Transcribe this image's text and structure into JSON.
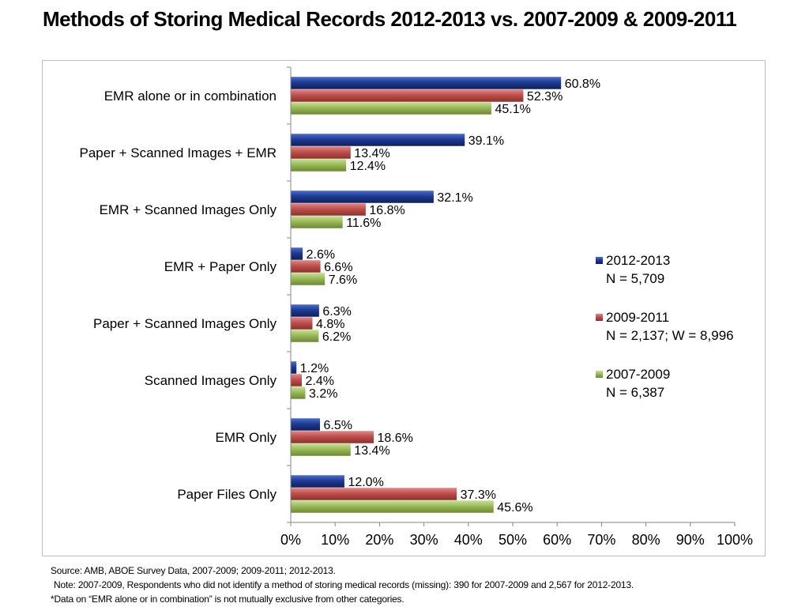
{
  "title": "Methods of Storing Medical Records 2012-2013 vs. 2007-2009 & 2009-2011",
  "colors": {
    "s2012_2013": "#1f3a93",
    "s2009_2011": "#c0504d",
    "s2007_2009": "#9bbb59",
    "axis": "#868686"
  },
  "chart_data": {
    "type": "bar",
    "orientation": "horizontal",
    "categories": [
      "EMR alone or in combination",
      "Paper + Scanned Images + EMR",
      "EMR + Scanned Images Only",
      "EMR + Paper Only",
      "Paper + Scanned Images Only",
      "Scanned Images Only",
      "EMR Only",
      "Paper Files Only"
    ],
    "series": [
      {
        "name": "2012-2013",
        "sub": "N = 5,709",
        "values": [
          60.8,
          39.1,
          32.1,
          2.6,
          6.3,
          1.2,
          6.5,
          12.0
        ],
        "labels": [
          "60.8%",
          "39.1%",
          "32.1%",
          "2.6%",
          "6.3%",
          "1.2%",
          "6.5%",
          "12.0%"
        ]
      },
      {
        "name": "2009-2011",
        "sub": "N = 2,137; W = 8,996",
        "values": [
          52.3,
          13.4,
          16.8,
          6.6,
          4.8,
          2.4,
          18.6,
          37.3
        ],
        "labels": [
          "52.3%",
          "13.4%",
          "16.8%",
          "6.6%",
          "4.8%",
          "2.4%",
          "18.6%",
          "37.3%"
        ]
      },
      {
        "name": "2007-2009",
        "sub": "N = 6,387",
        "values": [
          45.1,
          12.4,
          11.6,
          7.6,
          6.2,
          3.2,
          13.4,
          45.6
        ],
        "labels": [
          "45.1%",
          "12.4%",
          "11.6%",
          "7.6%",
          "6.2%",
          "3.2%",
          "13.4%",
          "45.6%"
        ]
      }
    ],
    "xlim": [
      0,
      100
    ],
    "xticks": [
      "0%",
      "10%",
      "20%",
      "30%",
      "40%",
      "50%",
      "60%",
      "70%",
      "80%",
      "90%",
      "100%"
    ],
    "legend_position": "right",
    "grid": false
  },
  "notes": {
    "source": "Source: AMB, ABOE Survey Data, 2007-2009; 2009-2011; 2012-2013.",
    "note": "Note: 2007-2009, Respondents who did not identify a method of storing medical records (missing): 390 for 2007-2009 and 2,567 for 2012-2013.",
    "asterisk": "*Data on “EMR alone or in combination” is not mutually exclusive from other categories."
  }
}
